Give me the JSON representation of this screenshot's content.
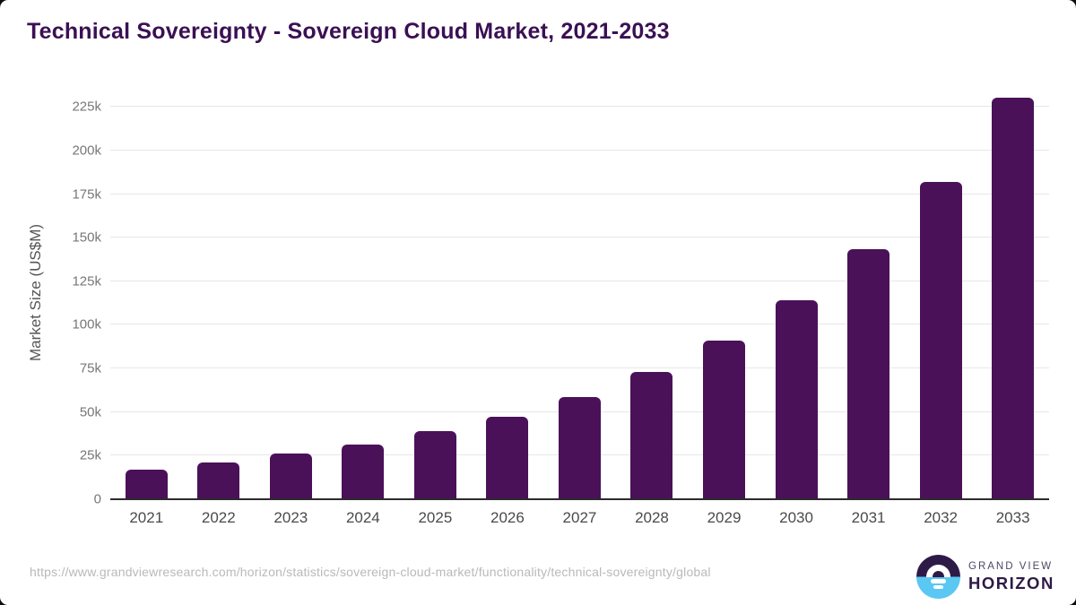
{
  "page": {
    "title": "Technical Sovereignty - Sovereign Cloud Market, 2021-2033",
    "source_url": "https://www.grandviewresearch.com/horizon/statistics/sovereign-cloud-market/functionality/technical-sovereignty/global",
    "brand": {
      "line1": "GRAND VIEW",
      "line2": "HORIZON"
    }
  },
  "chart_data": {
    "type": "bar",
    "title": "Technical Sovereignty - Sovereign Cloud Market, 2021-2033",
    "categories": [
      "2021",
      "2022",
      "2023",
      "2024",
      "2025",
      "2026",
      "2027",
      "2028",
      "2029",
      "2030",
      "2031",
      "2032",
      "2033"
    ],
    "values": [
      17000,
      21000,
      26000,
      31500,
      39000,
      47500,
      58500,
      73000,
      91000,
      114000,
      143500,
      182000,
      230500
    ],
    "xlabel": "",
    "ylabel": "Market Size (US$M)",
    "ylim": [
      0,
      237500
    ],
    "yticks": [
      0,
      25000,
      50000,
      75000,
      100000,
      125000,
      150000,
      175000,
      200000,
      225000
    ],
    "ytick_labels": [
      "0",
      "25k",
      "50k",
      "75k",
      "100k",
      "125k",
      "150k",
      "175k",
      "200k",
      "225k"
    ],
    "grid": true,
    "legend": false,
    "bar_color": "#4A1158"
  },
  "colors": {
    "title": "#3A1053",
    "bar": "#4A1158",
    "gridline": "#E7E7E7",
    "axis_line": "#2B2B2B",
    "tick_label": "#777777",
    "x_label": "#4A4A4A",
    "axis_title": "#555555",
    "url": "#B9B9B9",
    "logo_purple": "#2E1A47",
    "logo_blue": "#5BC7F3",
    "brand_top": "#4C4565"
  }
}
